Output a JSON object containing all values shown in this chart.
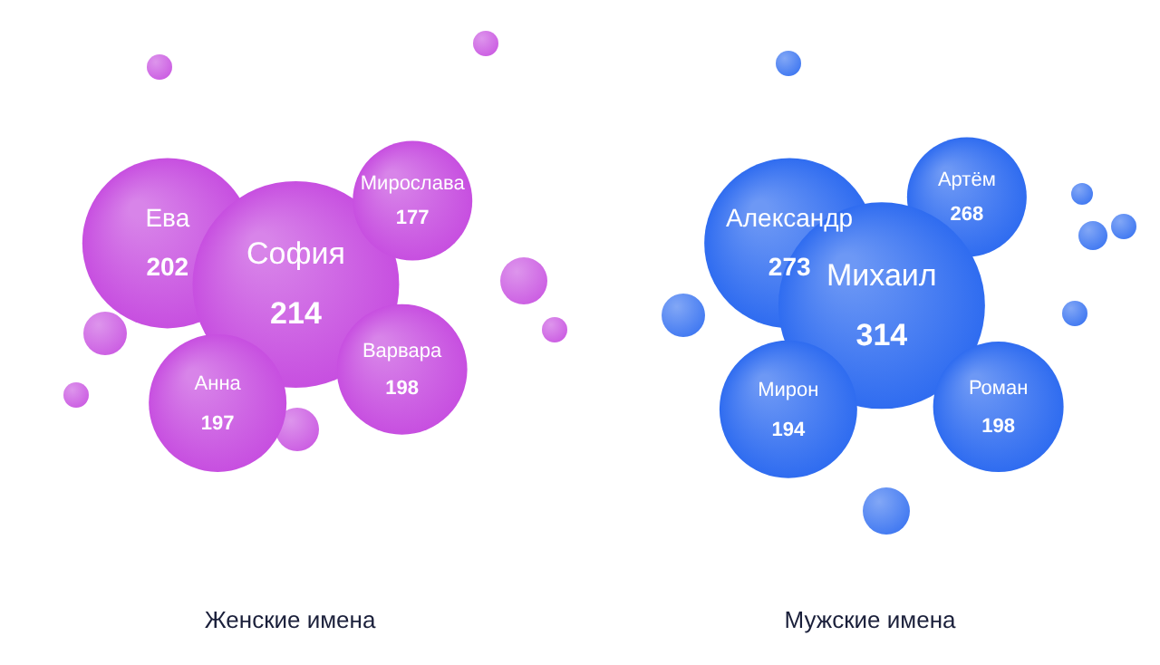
{
  "chart_data": [
    {
      "type": "other",
      "title": "Женские имена",
      "categories": [
        "Ева",
        "София",
        "Мирослава",
        "Анна",
        "Варвара"
      ],
      "values": [
        202,
        214,
        177,
        197,
        198
      ],
      "color": "#c74fe0",
      "data_labels": true
    },
    {
      "type": "other",
      "title": "Мужские имена",
      "categories": [
        "Александр",
        "Артём",
        "Михаил",
        "Мирон",
        "Роман"
      ],
      "values": [
        273,
        268,
        314,
        194,
        198
      ],
      "color": "#2f6cf0",
      "data_labels": true
    }
  ]
}
